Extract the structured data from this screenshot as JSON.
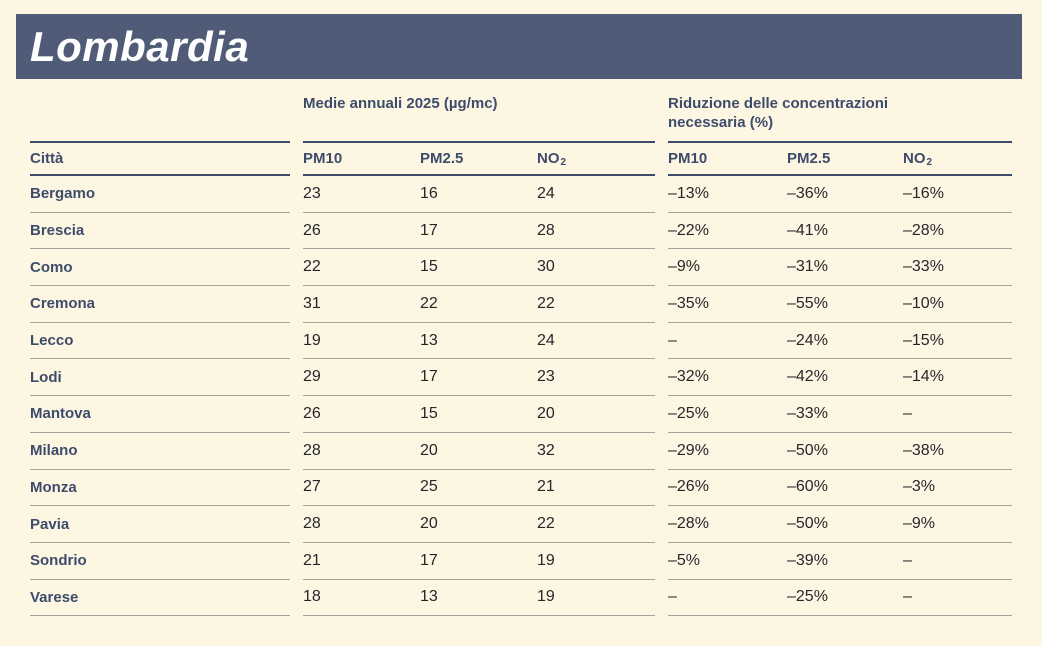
{
  "page": {
    "title": "Lombardia",
    "colors": {
      "background": "#fdf6e3",
      "band": "#505c77",
      "navy_text": "#3d4c6b",
      "value_text": "#26262b",
      "row_line": "#a5a39b",
      "header_line": "#3d4c6b"
    }
  },
  "table": {
    "group_header_averages": "Medie annuali 2025 (µg/mc)",
    "group_header_reduction": "Riduzione delle concentrazioni necessaria (%)",
    "col_city": "Città",
    "col_pm10": "PM10",
    "col_pm25": "PM2.5",
    "col_no2_base": "NO",
    "col_no2_sub": "2"
  },
  "chart_data": {
    "type": "table",
    "title": "Lombardia",
    "column_groups": [
      "Medie annuali 2025 (µg/mc)",
      "Riduzione delle concentrazioni necessaria (%)"
    ],
    "columns": [
      "Città",
      "PM10",
      "PM2.5",
      "NO2",
      "PM10",
      "PM2.5",
      "NO2"
    ],
    "rows": [
      {
        "city": "Bergamo",
        "pm10": 23,
        "pm25": 16,
        "no2": 24,
        "red_pm10": "–13%",
        "red_pm25": "–36%",
        "red_no2": "–16%"
      },
      {
        "city": "Brescia",
        "pm10": 26,
        "pm25": 17,
        "no2": 28,
        "red_pm10": "–22%",
        "red_pm25": "–41%",
        "red_no2": "–28%"
      },
      {
        "city": "Como",
        "pm10": 22,
        "pm25": 15,
        "no2": 30,
        "red_pm10": "–9%",
        "red_pm25": "–31%",
        "red_no2": "–33%"
      },
      {
        "city": "Cremona",
        "pm10": 31,
        "pm25": 22,
        "no2": 22,
        "red_pm10": "–35%",
        "red_pm25": "–55%",
        "red_no2": "–10%"
      },
      {
        "city": "Lecco",
        "pm10": 19,
        "pm25": 13,
        "no2": 24,
        "red_pm10": "–",
        "red_pm25": "–24%",
        "red_no2": "–15%"
      },
      {
        "city": "Lodi",
        "pm10": 29,
        "pm25": 17,
        "no2": 23,
        "red_pm10": "–32%",
        "red_pm25": "–42%",
        "red_no2": "–14%"
      },
      {
        "city": "Mantova",
        "pm10": 26,
        "pm25": 15,
        "no2": 20,
        "red_pm10": "–25%",
        "red_pm25": "–33%",
        "red_no2": "–"
      },
      {
        "city": "Milano",
        "pm10": 28,
        "pm25": 20,
        "no2": 32,
        "red_pm10": "–29%",
        "red_pm25": "–50%",
        "red_no2": "–38%"
      },
      {
        "city": "Monza",
        "pm10": 27,
        "pm25": 25,
        "no2": 21,
        "red_pm10": "–26%",
        "red_pm25": "–60%",
        "red_no2": "–3%"
      },
      {
        "city": "Pavia",
        "pm10": 28,
        "pm25": 20,
        "no2": 22,
        "red_pm10": "–28%",
        "red_pm25": "–50%",
        "red_no2": "–9%"
      },
      {
        "city": "Sondrio",
        "pm10": 21,
        "pm25": 17,
        "no2": 19,
        "red_pm10": "–5%",
        "red_pm25": "–39%",
        "red_no2": "–"
      },
      {
        "city": "Varese",
        "pm10": 18,
        "pm25": 13,
        "no2": 19,
        "red_pm10": "–",
        "red_pm25": "–25%",
        "red_no2": "–"
      }
    ]
  }
}
